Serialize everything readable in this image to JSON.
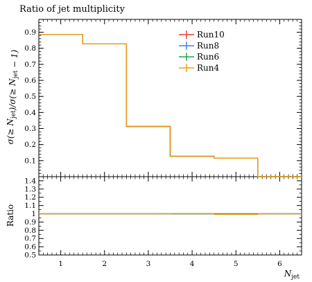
{
  "chart_data": {
    "type": "line",
    "title": "Ratio of jet multiplicity",
    "xlabel": "N_jet",
    "ylabel": "σ(≥ N_jet)/σ(≥ N_jet − 1)",
    "ratio_ylabel": "Ratio",
    "xlim": [
      0.5,
      6.5
    ],
    "ylim": [
      0,
      0.98
    ],
    "ratio_ylim": [
      0.5,
      1.45
    ],
    "x_ticks": [
      1,
      2,
      3,
      4,
      5,
      6
    ],
    "x_tick_labels": [
      "1",
      "2",
      "3",
      "4",
      "5",
      "6"
    ],
    "y_ticks": [
      0.1,
      0.2,
      0.3,
      0.4,
      0.5,
      0.6,
      0.7,
      0.8,
      0.9
    ],
    "y_tick_labels": [
      "0.1",
      "0.2",
      "0.3",
      "0.4",
      "0.5",
      "0.6",
      "0.7",
      "0.8",
      "0.9"
    ],
    "ratio_ticks": [
      0.5,
      0.6,
      0.7,
      0.8,
      0.9,
      1.0,
      1.1,
      1.2,
      1.3,
      1.4
    ],
    "ratio_tick_labels": [
      "0.5",
      "0.6",
      "0.7",
      "0.8",
      "0.9",
      "1",
      "1.1",
      "1.2",
      "1.3",
      "1.4"
    ],
    "bin_edges": [
      0.5,
      1.5,
      2.5,
      3.5,
      4.5,
      5.5,
      6.5
    ],
    "legend_position": "top-right",
    "series": [
      {
        "name": "Run10",
        "color": "#e8382b",
        "values": [
          0.886,
          0.828,
          0.313,
          0.127,
          0.115,
          0.0
        ],
        "ratio": [
          1.0,
          1.0,
          1.0,
          1.0,
          1.0,
          1.0
        ]
      },
      {
        "name": "Run8",
        "color": "#3d7cf0",
        "values": [
          0.886,
          0.828,
          0.313,
          0.127,
          0.115,
          0.0
        ],
        "ratio": [
          1.0,
          1.0,
          1.0,
          1.0,
          1.0,
          1.0
        ]
      },
      {
        "name": "Run6",
        "color": "#1fa640",
        "values": [
          0.886,
          0.828,
          0.313,
          0.127,
          0.115,
          0.0
        ],
        "ratio": [
          1.0,
          1.0,
          1.0,
          1.0,
          1.0,
          1.0
        ]
      },
      {
        "name": "Run4",
        "color": "#f59a15",
        "values": [
          0.886,
          0.828,
          0.313,
          0.127,
          0.115,
          0.0
        ],
        "ratio": [
          1.0,
          1.0,
          1.0,
          1.003,
          0.992,
          1.0
        ]
      }
    ]
  }
}
